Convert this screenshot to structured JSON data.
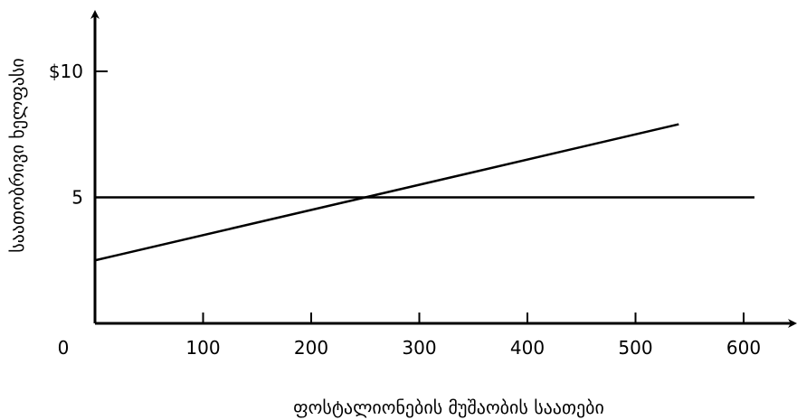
{
  "chart_data": {
    "type": "line",
    "title": "",
    "xlabel": "ფოსტალიონების მუშაობის საათები",
    "ylabel": "საათობრივი ხელფასი",
    "xlim": [
      0,
      610
    ],
    "ylim": [
      0,
      10
    ],
    "x_ticks": [
      {
        "value": 0,
        "label": "0"
      },
      {
        "value": 100,
        "label": "100"
      },
      {
        "value": 200,
        "label": "200"
      },
      {
        "value": 300,
        "label": "300"
      },
      {
        "value": 400,
        "label": "400"
      },
      {
        "value": 500,
        "label": "500"
      },
      {
        "value": 600,
        "label": "600"
      }
    ],
    "y_ticks": [
      {
        "value": 5,
        "label": "5"
      },
      {
        "value": 10,
        "label": "$10"
      }
    ],
    "grid": false,
    "legend": "none",
    "series": [
      {
        "x": [
          0,
          540
        ],
        "y": [
          2.5,
          7.9
        ]
      },
      {
        "x": [
          0,
          610
        ],
        "y": [
          5,
          5
        ]
      }
    ],
    "colors": {
      "axis": "#000000",
      "line": "#000000"
    }
  }
}
